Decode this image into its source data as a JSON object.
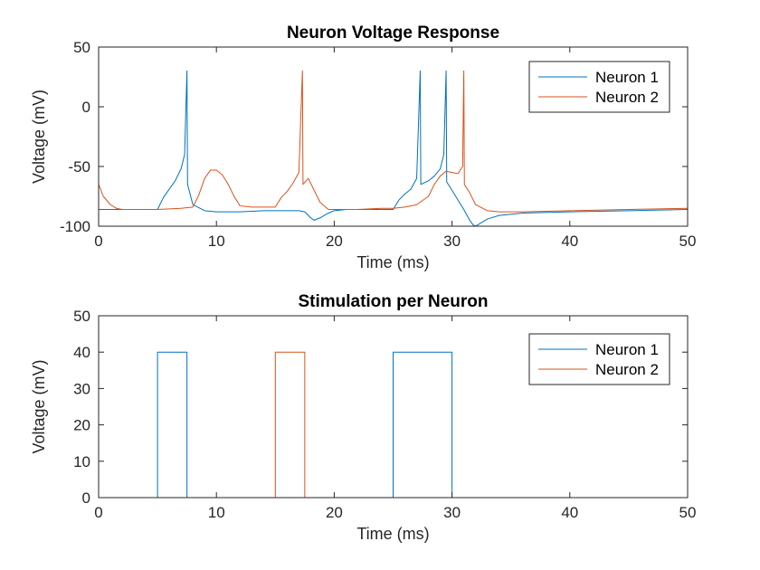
{
  "colors": {
    "neuron1": "#0072BD",
    "neuron2": "#D95319",
    "axis": "#262626"
  },
  "chart_data": [
    {
      "type": "line",
      "title": "Neuron Voltage Response",
      "xlabel": "Time (ms)",
      "ylabel": "Voltage (mV)",
      "xlim": [
        0,
        50
      ],
      "ylim": [
        -100,
        50
      ],
      "xticks": [
        "0",
        "10",
        "20",
        "30",
        "40",
        "50"
      ],
      "yticks": [
        "-100",
        "-50",
        "0",
        "50"
      ],
      "grid": false,
      "legend": "top-right",
      "series": [
        {
          "name": "Neuron 1",
          "x": [
            0,
            1,
            2,
            3,
            4,
            5,
            5.5,
            6,
            6.5,
            7,
            7.3,
            7.5,
            7.55,
            8,
            9,
            10,
            12,
            14,
            16,
            17,
            17.5,
            18,
            18.3,
            18.8,
            19.5,
            20,
            21,
            22,
            24,
            25,
            25.5,
            26,
            26.5,
            27,
            27.3,
            27.35,
            28,
            28.5,
            29,
            29.3,
            29.5,
            29.55,
            30,
            30.5,
            31,
            31.5,
            31.8,
            32,
            32.5,
            33,
            34,
            36,
            40,
            45,
            50
          ],
          "y": [
            -86,
            -86,
            -86,
            -86,
            -86,
            -86,
            -76,
            -69,
            -62,
            -52,
            -40,
            30,
            -65,
            -82,
            -87,
            -88,
            -88,
            -87,
            -87,
            -87,
            -88,
            -93,
            -95,
            -93,
            -89,
            -87,
            -86,
            -86,
            -86,
            -86,
            -78,
            -73,
            -69,
            -60,
            30,
            -65,
            -62,
            -58,
            -52,
            -40,
            30,
            -63,
            -70,
            -78,
            -86,
            -95,
            -99,
            -100,
            -97,
            -94,
            -91,
            -89,
            -88,
            -87,
            -86
          ]
        },
        {
          "name": "Neuron 2",
          "x": [
            0,
            0.4,
            1,
            1.5,
            2,
            3,
            4,
            5,
            6,
            7,
            8,
            8.5,
            9,
            9.5,
            10,
            10.5,
            11,
            11.5,
            12,
            13,
            14,
            15,
            15.5,
            16,
            16.5,
            17,
            17.3,
            17.35,
            17.8,
            18.2,
            18.8,
            19.5,
            20,
            21,
            22,
            24,
            25,
            26,
            27,
            28,
            28.5,
            29,
            29.5,
            30,
            30.5,
            30.9,
            31,
            31.05,
            31.5,
            32,
            33,
            34,
            36,
            40,
            45,
            50
          ],
          "y": [
            -65,
            -75,
            -82,
            -85,
            -86,
            -86,
            -86,
            -86,
            -85.5,
            -85,
            -84,
            -74,
            -60,
            -53,
            -53,
            -57,
            -65,
            -75,
            -83,
            -84,
            -84,
            -84,
            -76,
            -71,
            -64,
            -55,
            30,
            -65,
            -60,
            -68,
            -80,
            -86,
            -86,
            -86,
            -86,
            -85,
            -85,
            -84,
            -82,
            -75,
            -65,
            -58,
            -54,
            -55,
            -56,
            -50,
            30,
            -65,
            -72,
            -82,
            -87,
            -88,
            -88,
            -87,
            -86,
            -85
          ]
        }
      ]
    },
    {
      "type": "line",
      "title": "Stimulation per Neuron",
      "xlabel": "Time (ms)",
      "ylabel": "Voltage (mV)",
      "xlim": [
        0,
        50
      ],
      "ylim": [
        0,
        50
      ],
      "xticks": [
        "0",
        "10",
        "20",
        "30",
        "40",
        "50"
      ],
      "yticks": [
        "0",
        "10",
        "20",
        "30",
        "40",
        "50"
      ],
      "grid": false,
      "legend": "top-right",
      "series": [
        {
          "name": "Neuron 1",
          "x": [
            0,
            5,
            5,
            7.5,
            7.5,
            25,
            25,
            30,
            30,
            50
          ],
          "y": [
            0,
            0,
            40,
            40,
            0,
            0,
            40,
            40,
            0,
            0
          ]
        },
        {
          "name": "Neuron 2",
          "x": [
            0,
            15,
            15,
            17.5,
            17.5,
            50
          ],
          "y": [
            0,
            0,
            40,
            40,
            0,
            0
          ]
        }
      ]
    }
  ]
}
